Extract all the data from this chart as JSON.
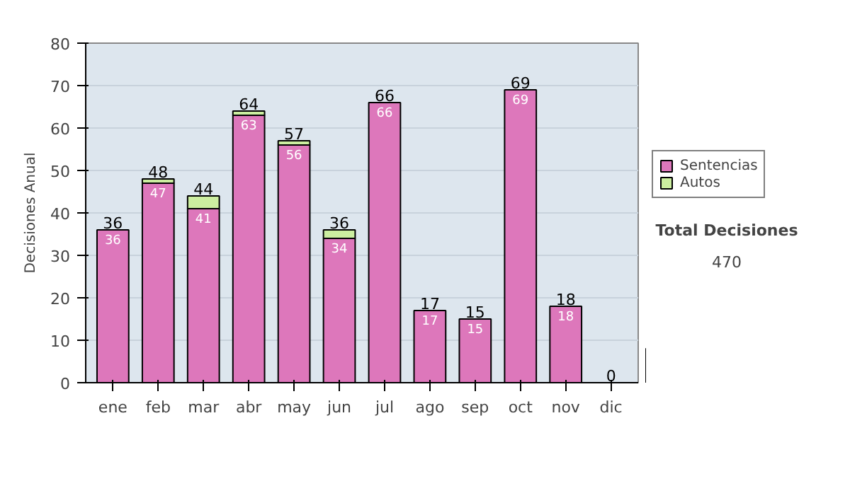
{
  "chart_data": {
    "type": "bar",
    "stacked": true,
    "ylabel": "Decisiones Anual",
    "categories": [
      "ene",
      "feb",
      "mar",
      "abr",
      "may",
      "jun",
      "jul",
      "ago",
      "sep",
      "oct",
      "nov",
      "dic"
    ],
    "series": [
      {
        "name": "Sentencias",
        "color": "#dd77bb",
        "values": [
          36,
          47,
          41,
          63,
          56,
          34,
          66,
          17,
          15,
          69,
          18,
          0
        ],
        "value_labels": [
          "36",
          "47",
          "41",
          "63",
          "56",
          "34",
          "66",
          "17",
          "15",
          "69",
          "18",
          null
        ]
      },
      {
        "name": "Autos",
        "color": "#cceea0",
        "values": [
          0,
          1,
          3,
          1,
          1,
          2,
          0,
          0,
          0,
          0,
          0,
          0
        ]
      }
    ],
    "totals": [
      "36",
      "48",
      "44",
      "64",
      "57",
      "36",
      "66",
      "17",
      "15",
      "69",
      "18",
      "0"
    ],
    "ylim": [
      0,
      80
    ],
    "yticks": [
      0,
      10,
      20,
      30,
      40,
      50,
      60,
      70,
      80
    ],
    "grid": "y",
    "legend": "right",
    "annotations": [
      "Total Decisiones",
      "470"
    ]
  }
}
